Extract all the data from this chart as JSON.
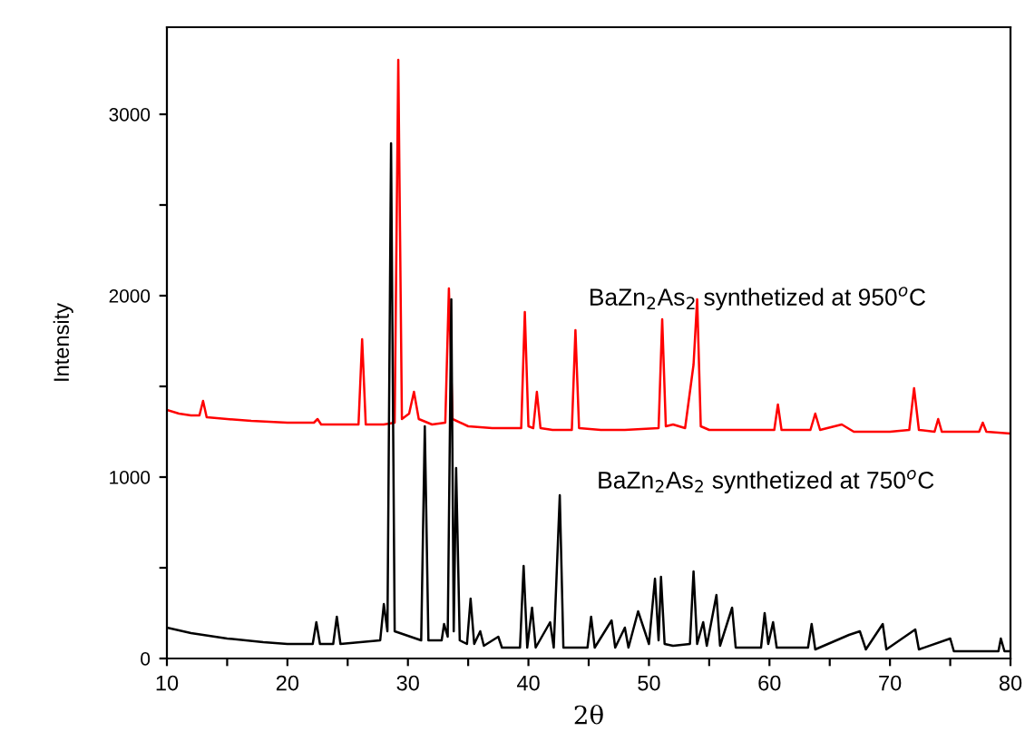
{
  "chart_data": {
    "type": "line",
    "xlabel": "2θ",
    "ylabel": "Intensity",
    "xlim": [
      10,
      80
    ],
    "ylim": [
      0,
      3480
    ],
    "xticks": [
      10,
      {
        "value": 15,
        "label": null
      },
      20,
      {
        "value": 25,
        "label": null
      },
      30,
      {
        "value": 35,
        "label": null
      },
      40,
      {
        "value": 45,
        "label": null
      },
      50,
      {
        "value": 55,
        "label": null
      },
      60,
      {
        "value": 65,
        "label": null
      },
      70,
      {
        "value": 75,
        "label": null
      },
      80
    ],
    "yticks": [
      0,
      {
        "value": 500,
        "label": null
      },
      1000,
      {
        "value": 1500,
        "label": null
      },
      2000,
      {
        "value": 2500,
        "label": null
      },
      3000
    ],
    "grid": false,
    "legend": false,
    "marker": "none",
    "line_style": "solid",
    "annotations": [
      "BaZn$_{2}$As$_{2}$ synthetized at 950$^{o}$C",
      "BaZn$_{2}$As$_{2}$ synthetized at 750$^{o}$C"
    ],
    "series": [
      {
        "color": "#ff0000",
        "x": [
          10,
          11,
          12,
          12.7,
          13,
          13.3,
          15,
          17,
          20,
          22.2,
          22.5,
          22.8,
          24,
          25.9,
          26.2,
          26.5,
          28,
          28.9,
          29.2,
          29.5,
          30.1,
          30.5,
          30.9,
          32,
          33.1,
          33.4,
          33.7,
          35,
          37,
          39.4,
          39.7,
          40,
          40.4,
          40.7,
          41,
          42,
          43.6,
          43.9,
          44.2,
          46,
          48,
          50.8,
          51.1,
          51.4,
          52,
          53,
          53.7,
          54.0,
          54.3,
          55,
          57,
          60.4,
          60.7,
          61,
          63.4,
          63.8,
          64.2,
          66,
          67,
          70,
          71.6,
          72,
          72.4,
          73.7,
          74,
          74.3,
          77.4,
          77.7,
          78,
          80
        ],
        "values": [
          1370,
          1350,
          1340,
          1340,
          1420,
          1330,
          1320,
          1310,
          1300,
          1300,
          1320,
          1290,
          1290,
          1290,
          1760,
          1290,
          1290,
          1300,
          3300,
          1320,
          1350,
          1470,
          1320,
          1290,
          1300,
          2040,
          1320,
          1280,
          1270,
          1270,
          1910,
          1280,
          1270,
          1470,
          1270,
          1260,
          1260,
          1810,
          1270,
          1260,
          1260,
          1270,
          1870,
          1280,
          1290,
          1270,
          1620,
          1980,
          1280,
          1260,
          1260,
          1260,
          1400,
          1260,
          1260,
          1350,
          1260,
          1290,
          1250,
          1250,
          1260,
          1490,
          1260,
          1250,
          1320,
          1250,
          1250,
          1300,
          1250,
          1240
        ]
      },
      {
        "color": "#000000",
        "x": [
          10,
          12,
          15,
          18,
          20,
          22.1,
          22.4,
          22.7,
          23.8,
          24.1,
          24.4,
          27.7,
          28.0,
          28.3,
          28.6,
          28.9,
          31.1,
          31.4,
          31.7,
          32.8,
          33.0,
          33.3,
          33.6,
          33.8,
          34.0,
          34.3,
          34.9,
          35.2,
          35.5,
          36,
          36.3,
          37.5,
          37.8,
          39.3,
          39.6,
          39.9,
          40.3,
          40.6,
          41.8,
          42.1,
          42.6,
          42.9,
          44.9,
          45.2,
          45.5,
          46.9,
          47.2,
          48,
          48.3,
          49.1,
          49.4,
          50,
          50.5,
          50.8,
          51.0,
          51.3,
          52,
          53.4,
          53.7,
          54,
          54.5,
          54.8,
          55.6,
          55.9,
          56.9,
          57.2,
          59.3,
          59.6,
          59.9,
          60.3,
          60.6,
          63.2,
          63.5,
          63.8,
          66.6,
          67.5,
          68,
          69.4,
          69.7,
          72.1,
          72.4,
          75,
          75.3,
          79,
          79.2,
          79.5,
          80
        ],
        "values": [
          170,
          140,
          110,
          90,
          80,
          80,
          200,
          80,
          80,
          230,
          80,
          100,
          300,
          150,
          2840,
          150,
          100,
          1280,
          100,
          100,
          190,
          120,
          1980,
          150,
          1050,
          100,
          80,
          330,
          80,
          150,
          70,
          120,
          60,
          60,
          510,
          60,
          280,
          60,
          200,
          60,
          900,
          60,
          60,
          230,
          60,
          210,
          60,
          170,
          60,
          260,
          200,
          80,
          440,
          100,
          450,
          80,
          70,
          80,
          480,
          80,
          200,
          70,
          350,
          70,
          280,
          60,
          60,
          250,
          80,
          200,
          60,
          60,
          190,
          50,
          130,
          150,
          50,
          190,
          50,
          160,
          50,
          110,
          40,
          40,
          110,
          40,
          40
        ]
      }
    ]
  }
}
